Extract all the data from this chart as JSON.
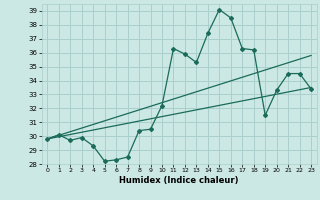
{
  "xlabel": "Humidex (Indice chaleur)",
  "xlim": [
    -0.5,
    23.5
  ],
  "ylim": [
    28,
    39.5
  ],
  "yticks": [
    28,
    29,
    30,
    31,
    32,
    33,
    34,
    35,
    36,
    37,
    38,
    39
  ],
  "xticks": [
    0,
    1,
    2,
    3,
    4,
    5,
    6,
    7,
    8,
    9,
    10,
    11,
    12,
    13,
    14,
    15,
    16,
    17,
    18,
    19,
    20,
    21,
    22,
    23
  ],
  "bg_color": "#cce8e4",
  "grid_color": "#aacfcc",
  "line_color": "#1a6b5a",
  "line1_x": [
    0,
    1,
    2,
    3,
    4,
    5,
    6,
    7,
    8,
    9,
    10,
    11,
    12,
    13,
    14,
    15,
    16,
    17,
    18,
    19,
    20,
    21,
    22,
    23
  ],
  "line1_y": [
    29.8,
    30.1,
    29.7,
    29.9,
    29.3,
    28.2,
    28.3,
    28.5,
    30.4,
    30.5,
    32.2,
    36.3,
    35.9,
    35.3,
    37.4,
    39.1,
    38.5,
    36.3,
    36.2,
    31.5,
    33.3,
    34.5,
    34.5,
    33.4
  ],
  "line2_x": [
    0,
    23
  ],
  "line2_y": [
    29.8,
    35.8
  ],
  "line3_x": [
    0,
    23
  ],
  "line3_y": [
    29.8,
    33.5
  ]
}
